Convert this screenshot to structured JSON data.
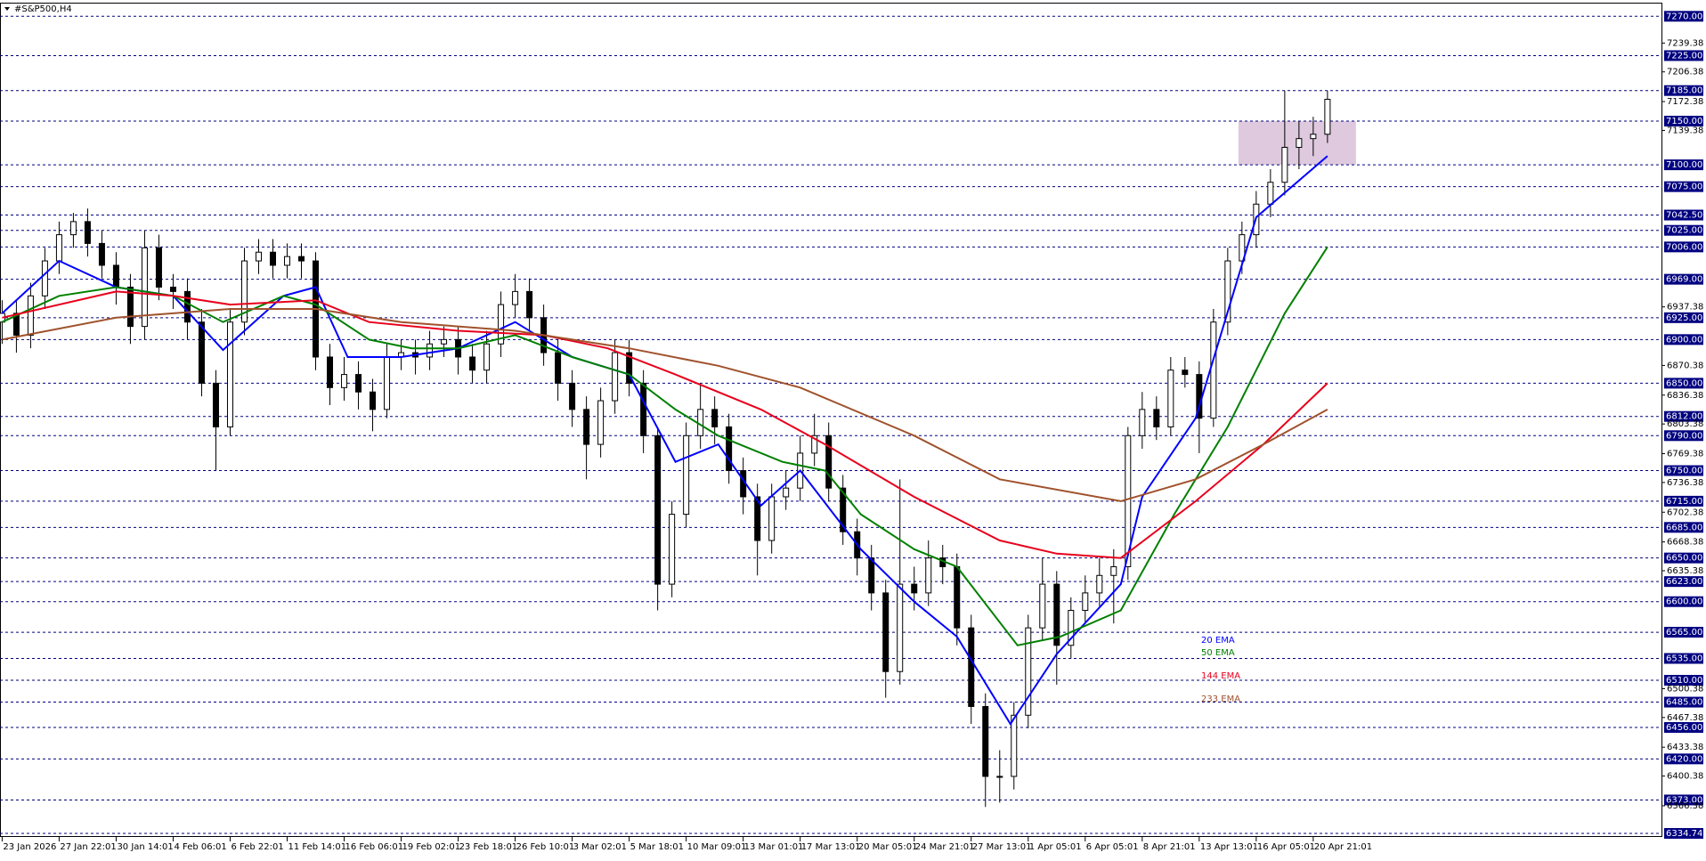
{
  "chart_data": {
    "type": "candlestick",
    "title": "#S&P500,H4",
    "x": [
      0,
      4,
      8,
      12,
      16,
      20,
      24,
      28,
      32,
      36,
      40,
      44,
      48,
      52,
      56,
      60,
      64,
      68,
      72,
      76,
      80,
      84,
      88,
      92,
      96,
      100,
      104,
      108,
      112,
      116,
      120,
      124,
      128,
      132,
      136,
      140,
      144,
      148,
      152,
      156,
      160,
      164,
      168,
      172,
      176,
      180,
      184,
      188,
      192,
      196,
      200,
      204,
      208,
      212,
      216,
      220,
      224,
      228,
      232,
      236,
      240,
      244,
      248,
      252,
      256,
      260,
      264,
      268,
      272,
      276,
      280,
      284,
      288,
      292,
      296,
      300,
      304,
      308,
      312,
      316,
      320,
      324,
      328,
      332,
      336,
      340,
      344,
      348,
      352,
      356,
      360,
      364,
      368,
      372
    ],
    "open": [
      6920,
      6930,
      6905,
      6950,
      6990,
      7020,
      7035,
      7010,
      6985,
      6960,
      6915,
      7005,
      6960,
      6955,
      6920,
      6850,
      6800,
      6920,
      6990,
      7000,
      6985,
      6995,
      6990,
      6880,
      6845,
      6860,
      6840,
      6820,
      6880,
      6885,
      6880,
      6895,
      6900,
      6880,
      6865,
      6895,
      6940,
      6955,
      6925,
      6885,
      6850,
      6820,
      6780,
      6830,
      6885,
      6850,
      6790,
      6620,
      6700,
      6790,
      6820,
      6800,
      6750,
      6720,
      6670,
      6720,
      6730,
      6770,
      6790,
      6730,
      6680,
      6650,
      6610,
      6520,
      6620,
      6610,
      6650,
      6640,
      6570,
      6480,
      6400,
      6400,
      6470,
      6570,
      6620,
      6550,
      6590,
      6610,
      6630,
      6640,
      6790,
      6820,
      6800,
      6865,
      6860,
      6810,
      6920,
      6990,
      7020,
      7055,
      7080,
      7120,
      7130,
      7135
    ],
    "high": [
      6945,
      6945,
      6965,
      7005,
      7035,
      7045,
      7050,
      7025,
      7000,
      6975,
      7025,
      7020,
      6975,
      6970,
      6935,
      6865,
      6935,
      7005,
      7015,
      7015,
      7010,
      7010,
      7000,
      6895,
      6880,
      6875,
      6855,
      6895,
      6900,
      6900,
      6910,
      6915,
      6915,
      6895,
      6910,
      6955,
      6975,
      6970,
      6940,
      6900,
      6865,
      6835,
      6845,
      6900,
      6900,
      6865,
      6800,
      6715,
      6805,
      6850,
      6835,
      6815,
      6765,
      6735,
      6735,
      6750,
      6790,
      6815,
      6805,
      6745,
      6695,
      6665,
      6625,
      6740,
      6640,
      6670,
      6665,
      6655,
      6585,
      6495,
      6430,
      6485,
      6585,
      6650,
      6635,
      6605,
      6630,
      6650,
      6660,
      6800,
      6840,
      6835,
      6880,
      6880,
      6875,
      6935,
      7005,
      7035,
      7070,
      7095,
      7185,
      7150,
      7155,
      7185
    ],
    "low": [
      6895,
      6885,
      6890,
      6935,
      6975,
      7005,
      6995,
      6970,
      6940,
      6895,
      6900,
      6945,
      6935,
      6900,
      6835,
      6750,
      6790,
      6905,
      6975,
      6970,
      6970,
      6970,
      6865,
      6825,
      6830,
      6820,
      6795,
      6810,
      6865,
      6860,
      6865,
      6880,
      6860,
      6850,
      6850,
      6880,
      6925,
      6910,
      6870,
      6830,
      6800,
      6740,
      6765,
      6815,
      6835,
      6770,
      6590,
      6605,
      6685,
      6775,
      6780,
      6735,
      6700,
      6630,
      6655,
      6705,
      6715,
      6755,
      6715,
      6665,
      6630,
      6590,
      6490,
      6505,
      6590,
      6595,
      6620,
      6550,
      6460,
      6365,
      6370,
      6385,
      6455,
      6555,
      6505,
      6535,
      6575,
      6595,
      6575,
      6625,
      6775,
      6785,
      6790,
      6845,
      6770,
      6800,
      6905,
      6975,
      7005,
      7040,
      7065,
      7095,
      7110,
      7125
    ],
    "close": [
      6930,
      6905,
      6950,
      6990,
      7020,
      7035,
      7010,
      6985,
      6960,
      6915,
      7005,
      6960,
      6955,
      6920,
      6850,
      6800,
      6920,
      6990,
      7000,
      6985,
      6995,
      6990,
      6880,
      6845,
      6860,
      6840,
      6820,
      6880,
      6885,
      6880,
      6895,
      6900,
      6880,
      6865,
      6895,
      6940,
      6955,
      6925,
      6885,
      6850,
      6820,
      6780,
      6830,
      6885,
      6850,
      6790,
      6620,
      6700,
      6790,
      6820,
      6800,
      6750,
      6720,
      6670,
      6720,
      6730,
      6770,
      6790,
      6730,
      6680,
      6650,
      6610,
      6520,
      6620,
      6610,
      6650,
      6640,
      6570,
      6480,
      6400,
      6400,
      6470,
      6570,
      6620,
      6550,
      6590,
      6610,
      6630,
      6640,
      6790,
      6820,
      6800,
      6865,
      6860,
      6810,
      6920,
      6990,
      7020,
      7055,
      7080,
      7120,
      7130,
      7135,
      7175
    ],
    "up_color": "#ffffff",
    "down_color": "#000000",
    "wick_color": "#000000",
    "series": [
      {
        "name": "20 EMA",
        "color": "#0000ff",
        "x": [
          0,
          16,
          32,
          48,
          62,
          79,
          88,
          97,
          112,
          128,
          144,
          160,
          176,
          189,
          201,
          213,
          224,
          241,
          256,
          268,
          283,
          296,
          305,
          314,
          320,
          335,
          352,
          372
        ],
        "values": [
          6930,
          6990,
          6960,
          6950,
          6888,
          6950,
          6960,
          6880,
          6880,
          6890,
          6920,
          6880,
          6860,
          6760,
          6780,
          6710,
          6750,
          6660,
          6600,
          6560,
          6460,
          6540,
          6580,
          6620,
          6720,
          6810,
          7040,
          7110
        ]
      },
      {
        "name": "50 EMA",
        "color": "#008000",
        "x": [
          0,
          16,
          32,
          48,
          62,
          79,
          88,
          103,
          115,
          128,
          144,
          160,
          176,
          189,
          201,
          219,
          231,
          241,
          256,
          268,
          285,
          297,
          314,
          329,
          344,
          360,
          372
        ],
        "values": [
          6920,
          6950,
          6960,
          6950,
          6920,
          6950,
          6940,
          6900,
          6890,
          6890,
          6905,
          6880,
          6860,
          6820,
          6790,
          6760,
          6750,
          6700,
          6660,
          6640,
          6550,
          6560,
          6590,
          6700,
          6800,
          6930,
          7006
        ]
      },
      {
        "name": "144 EMA",
        "color": "#e8001c",
        "x": [
          0,
          32,
          48,
          64,
          88,
          103,
          128,
          152,
          170,
          189,
          213,
          231,
          256,
          280,
          296,
          314,
          335,
          354,
          372
        ],
        "values": [
          6925,
          6955,
          6950,
          6940,
          6945,
          6920,
          6910,
          6905,
          6890,
          6860,
          6820,
          6780,
          6720,
          6670,
          6655,
          6650,
          6715,
          6780,
          6850
        ]
      },
      {
        "name": "233 EMA",
        "color": "#a0522d",
        "x": [
          0,
          32,
          64,
          88,
          112,
          144,
          176,
          201,
          224,
          256,
          280,
          314,
          335,
          354,
          372
        ],
        "values": [
          6900,
          6925,
          6935,
          6935,
          6920,
          6910,
          6890,
          6870,
          6845,
          6790,
          6740,
          6715,
          6740,
          6780,
          6820
        ]
      }
    ],
    "zone": {
      "x": [
        347,
        380
      ],
      "y": [
        7100,
        7150
      ],
      "color": "#d8bfd8"
    },
    "xlim": [
      -0.6,
      466
    ],
    "xticks": [
      {
        "value": 0,
        "label": "23 Jan 2026"
      },
      {
        "value": 16,
        "label": "27 Jan 22:01"
      },
      {
        "value": 32,
        "label": "30 Jan 14:01"
      },
      {
        "value": 48,
        "label": "4 Feb 06:01"
      },
      {
        "value": 64,
        "label": "6 Feb 22:01"
      },
      {
        "value": 80,
        "label": "11 Feb 14:01"
      },
      {
        "value": 96,
        "label": "16 Feb 06:01"
      },
      {
        "value": 112,
        "label": "19 Feb 02:01"
      },
      {
        "value": 128,
        "label": "23 Feb 18:01"
      },
      {
        "value": 144,
        "label": "26 Feb 10:01"
      },
      {
        "value": 160,
        "label": "3 Mar 02:01"
      },
      {
        "value": 176,
        "label": "5 Mar 18:01"
      },
      {
        "value": 192,
        "label": "10 Mar 09:01"
      },
      {
        "value": 208,
        "label": "13 Mar 01:01"
      },
      {
        "value": 224,
        "label": "17 Mar 13:01"
      },
      {
        "value": 240,
        "label": "20 Mar 05:01"
      },
      {
        "value": 256,
        "label": "24 Mar 21:01"
      },
      {
        "value": 272,
        "label": "27 Mar 13:01"
      },
      {
        "value": 288,
        "label": "1 Apr 05:01"
      },
      {
        "value": 304,
        "label": "6 Apr 05:01"
      },
      {
        "value": 320,
        "label": "8 Apr 21:01"
      },
      {
        "value": 336,
        "label": "13 Apr 13:01"
      },
      {
        "value": 352,
        "label": "16 Apr 05:01"
      },
      {
        "value": 368,
        "label": "20 Apr 21:01"
      }
    ],
    "ylim": [
      6334.74,
      7270
    ],
    "yticks": [
      7239.38,
      7206.38,
      7172.38,
      7139.38,
      6937.38,
      6870.38,
      6836.38,
      6803.38,
      6769.38,
      6736.38,
      6702.38,
      6668.38,
      6635.38,
      6500.38,
      6467.38,
      6433.38,
      6400.38,
      6366.38
    ],
    "levels": [
      {
        "value": 7270,
        "label": "7270.00"
      },
      {
        "value": 7225,
        "label": "7225.00"
      },
      {
        "value": 7185,
        "label": "7185.00"
      },
      {
        "value": 7150,
        "label": "7150.00"
      },
      {
        "value": 7100,
        "label": "7100.00"
      },
      {
        "value": 7075,
        "label": "7075.00"
      },
      {
        "value": 7042.5,
        "label": "7042.50"
      },
      {
        "value": 7025,
        "label": "7025.00"
      },
      {
        "value": 7006,
        "label": "7006.00"
      },
      {
        "value": 6969,
        "label": "6969.00"
      },
      {
        "value": 6925,
        "label": "6925.00"
      },
      {
        "value": 6900,
        "label": "6900.00"
      },
      {
        "value": 6850,
        "label": "6850.00"
      },
      {
        "value": 6812,
        "label": "6812.00"
      },
      {
        "value": 6790,
        "label": "6790.00"
      },
      {
        "value": 6750,
        "label": "6750.00"
      },
      {
        "value": 6715,
        "label": "6715.00"
      },
      {
        "value": 6685,
        "label": "6685.00"
      },
      {
        "value": 6650,
        "label": "6650.00"
      },
      {
        "value": 6623,
        "label": "6623.00"
      },
      {
        "value": 6600,
        "label": "6600.00"
      },
      {
        "value": 6565,
        "label": "6565.00"
      },
      {
        "value": 6535,
        "label": "6535.00"
      },
      {
        "value": 6510,
        "label": "6510.00"
      },
      {
        "value": 6485,
        "label": "6485.00"
      },
      {
        "value": 6456,
        "label": "6456.00"
      },
      {
        "value": 6420,
        "label": "6420.00"
      },
      {
        "value": 6373,
        "label": "6373.00"
      },
      {
        "value": 6334.74,
        "label": "6334.74"
      }
    ],
    "level_color": "#000080"
  }
}
